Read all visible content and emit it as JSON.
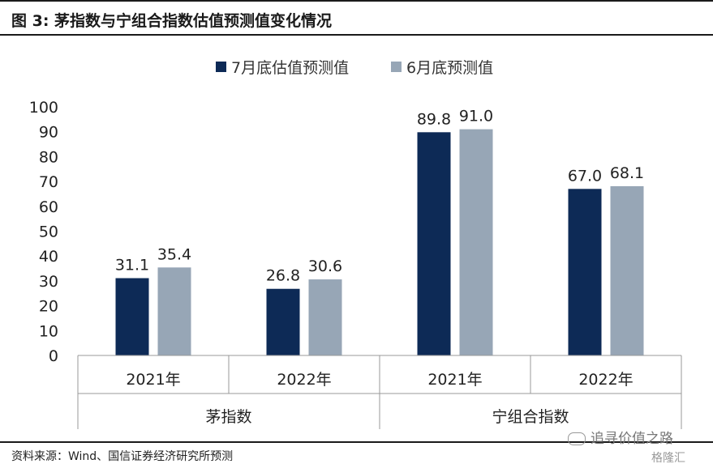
{
  "figure": {
    "title": "图 3: 茅指数与宁组合指数估值预测值变化情况",
    "source": "资料来源：Wind、国信证券经济研究所预测",
    "watermark": "追寻价值之路",
    "logo": "格隆汇"
  },
  "chart_data": {
    "type": "bar",
    "title": "",
    "ylim": [
      0,
      100
    ],
    "yticks": [
      0,
      10,
      20,
      30,
      40,
      50,
      60,
      70,
      80,
      90,
      100
    ],
    "grid": false,
    "legend_position": "top-center",
    "groups": [
      "茅指数",
      "宁组合指数"
    ],
    "categories": [
      "2021年",
      "2022年",
      "2021年",
      "2022年"
    ],
    "category_group": [
      0,
      0,
      1,
      1
    ],
    "series": [
      {
        "name": "7月底估值预测值",
        "color": "#0d2a56",
        "values": [
          31.1,
          26.8,
          89.8,
          67.0
        ]
      },
      {
        "name": "6月底预测值",
        "color": "#97a6b6",
        "values": [
          35.4,
          30.6,
          91.0,
          68.1
        ]
      }
    ]
  }
}
